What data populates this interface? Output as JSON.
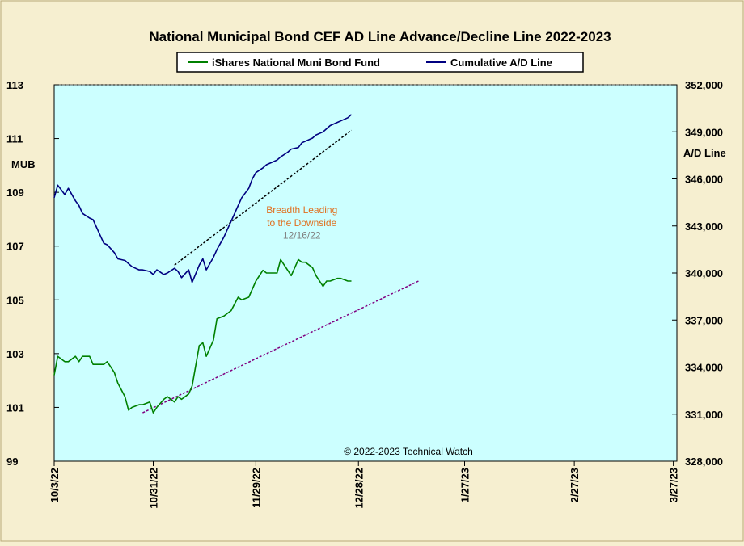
{
  "chart_data": {
    "type": "line",
    "title": "National  Municipal  Bond  CEF  AD  Line  Advance/Decline  Line  2022-2023",
    "ylabel_left": "MUB",
    "ylabel_right": "A/D Line",
    "ylim_left": [
      99,
      113
    ],
    "ylim_right": [
      328000,
      352000
    ],
    "yticks_left": [
      "99",
      "101",
      "103",
      "105",
      "107",
      "109",
      "111",
      "113"
    ],
    "yticks_right": [
      "328,000",
      "331,000",
      "334,000",
      "337,000",
      "340,000",
      "343,000",
      "346,000",
      "349,000",
      "352,000"
    ],
    "xticks": [
      "10/3/22",
      "10/31/22",
      "11/29/22",
      "12/28/22",
      "1/27/23",
      "2/27/23",
      "3/27/23"
    ],
    "xtick_days": [
      0,
      28,
      57,
      86,
      116,
      147,
      175
    ],
    "xlim_days": [
      0,
      176
    ],
    "legend": [
      {
        "label": "iShares National Muni Bond Fund",
        "color": "#008000"
      },
      {
        "label": "Cumulative A/D Line",
        "color": "#000080"
      }
    ],
    "series": [
      {
        "name": "iShares National Muni Bond Fund",
        "axis": "left",
        "color": "#008000",
        "x": [
          0,
          1,
          3,
          4,
          6,
          7,
          8,
          10,
          11,
          13,
          14,
          15,
          17,
          18,
          20,
          21,
          22,
          24,
          25,
          27,
          28,
          29,
          31,
          32,
          34,
          35,
          36,
          38,
          39,
          41,
          42,
          43,
          45,
          46,
          48,
          49,
          50,
          52,
          53,
          55,
          56,
          57,
          59,
          60,
          62,
          63,
          64,
          66,
          67,
          69,
          70,
          71,
          73,
          74,
          76,
          77,
          78,
          80,
          81,
          83,
          84
        ],
        "values": [
          102.2,
          102.9,
          102.7,
          102.7,
          102.9,
          102.7,
          102.9,
          102.9,
          102.6,
          102.6,
          102.6,
          102.7,
          102.3,
          101.9,
          101.4,
          100.9,
          101,
          101.1,
          101.1,
          101.2,
          100.8,
          101.0,
          101.3,
          101.4,
          101.2,
          101.4,
          101.3,
          101.5,
          101.8,
          103.3,
          103.4,
          102.9,
          103.5,
          104.3,
          104.4,
          104.5,
          104.6,
          105.1,
          105.0,
          105.1,
          105.4,
          105.7,
          106.1,
          106.0,
          106.0,
          106.0,
          106.5,
          106.1,
          105.9,
          106.5,
          106.4,
          106.4,
          106.2,
          105.9,
          105.5,
          105.7,
          105.7,
          105.8,
          105.8,
          105.7,
          105.7
        ]
      },
      {
        "name": "Cumulative A/D Line",
        "axis": "right",
        "color": "#000080",
        "x": [
          0,
          1,
          3,
          4,
          6,
          7,
          8,
          10,
          11,
          13,
          14,
          15,
          17,
          18,
          20,
          21,
          22,
          24,
          25,
          27,
          28,
          29,
          31,
          32,
          34,
          35,
          36,
          38,
          39,
          41,
          42,
          43,
          45,
          46,
          48,
          49,
          50,
          52,
          53,
          55,
          56,
          57,
          59,
          60,
          62,
          63,
          64,
          66,
          67,
          69,
          70,
          71,
          73,
          74,
          76,
          77,
          78,
          80,
          81,
          83,
          84
        ],
        "values": [
          344800,
          345600,
          345000,
          345400,
          344600,
          344300,
          343800,
          343500,
          343400,
          342400,
          341900,
          341800,
          341300,
          340900,
          340800,
          340600,
          340400,
          340200,
          340200,
          340100,
          339900,
          340200,
          339900,
          340000,
          340300,
          340100,
          339700,
          340200,
          339400,
          340500,
          340900,
          340200,
          341000,
          341500,
          342300,
          342800,
          343300,
          344300,
          344800,
          345400,
          346000,
          346400,
          346700,
          346900,
          347100,
          347200,
          347400,
          347700,
          347900,
          348000,
          348300,
          348400,
          348600,
          348800,
          349000,
          349200,
          349400,
          349600,
          349700,
          349900,
          350100
        ]
      }
    ],
    "trendlines": [
      {
        "name": "green-trendline",
        "axis": "left",
        "color": "#800080",
        "x": [
          25,
          103
        ],
        "values": [
          100.8,
          105.7
        ]
      },
      {
        "name": "blue-trendline",
        "axis": "right",
        "color": "#000000",
        "x": [
          34,
          84
        ],
        "values": [
          340500,
          349100
        ]
      }
    ],
    "annotations": [
      {
        "name": "breadth-annotation-line1",
        "text": "Breadth Leading",
        "color": "#e07020",
        "x": 70,
        "y": 343800
      },
      {
        "name": "breadth-annotation-line2",
        "text": "to the Downside",
        "color": "#e07020",
        "x": 70,
        "y": 343000
      },
      {
        "name": "breadth-annotation-date",
        "text": "12/16/22",
        "color": "#808080",
        "x": 70,
        "y": 342200
      }
    ],
    "copyright": "© 2022-2023  Technical  Watch",
    "background": "#ccffff",
    "grid": false,
    "legend_position": "top-center"
  }
}
